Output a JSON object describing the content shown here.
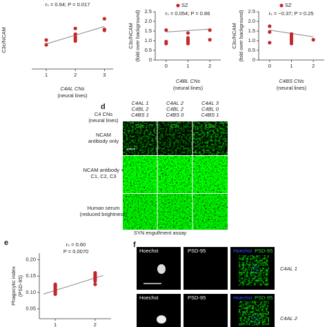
{
  "chart_data": [
    {
      "type": "scatter",
      "annotation": "rₛ = 0.64; P = 0.017",
      "ylabel": [
        "C3c/NCAM"
      ],
      "xlabel": [
        "C4AL CNs",
        "(neural lines)"
      ],
      "x": [
        1,
        1,
        2,
        2,
        2,
        2,
        2,
        2,
        3,
        3,
        3
      ],
      "values": [
        1.5,
        1.25,
        2.1,
        1.8,
        1.8,
        1.65,
        1.55,
        1.45,
        2.6,
        2.0,
        2.05
      ],
      "color": "#c0282d",
      "fit_line": {
        "x": [
          1,
          3
        ],
        "values": [
          1.3,
          2.2
        ],
        "color": "#888888"
      },
      "xlim": [
        0.5,
        3.3
      ],
      "xticks": [
        1,
        2,
        3
      ],
      "ylim": [
        0,
        3
      ]
    },
    {
      "type": "scatter",
      "annotation": "rₛ = 0.054; P = 0.86",
      "ylabel": [
        "C3c/NCAM",
        "(fold over background)"
      ],
      "xlabel": [
        "C4BL CNs",
        "(neural lines)"
      ],
      "series": [
        {
          "name": "SZ",
          "color": "#c0282d",
          "x": [
            0,
            0,
            0,
            1,
            1,
            1,
            1,
            1,
            2,
            2
          ],
          "values": [
            1.55,
            0.95,
            0.85,
            1.4,
            1.15,
            1.05,
            0.95,
            0.85,
            1.55,
            1.05
          ]
        }
      ],
      "fit_line": {
        "x": [
          0,
          2
        ],
        "values": [
          1.45,
          1.6
        ],
        "color": "#888888"
      },
      "xlim": [
        -0.5,
        2.5
      ],
      "xticks": [
        0,
        1,
        2
      ],
      "ylim": [
        0,
        2.5
      ],
      "yticks": [
        0,
        0.5,
        {
          "value": 1,
          "label": "1.0"
        },
        1.5,
        {
          "value": 2,
          "label": "2.0"
        },
        2.5
      ]
    },
    {
      "type": "scatter",
      "annotation": "rₛ = −0.37; P = 0.25",
      "ylabel": [
        "C3c/NCAM",
        "(fold over background)"
      ],
      "xlabel": [
        "C4BS CNs",
        "(neural lines)"
      ],
      "series": [
        {
          "name": "SZ",
          "color": "#c0282d",
          "x": [
            0,
            0,
            0,
            1,
            1,
            1,
            1,
            1,
            1,
            2
          ],
          "values": [
            1.75,
            1.45,
            0.9,
            1.35,
            1.15,
            1.05,
            0.95,
            0.85,
            1.25,
            1.05
          ]
        }
      ],
      "fit_line": {
        "x": [
          0,
          2
        ],
        "values": [
          1.55,
          1.2
        ],
        "color": "#888888"
      },
      "xlim": [
        -0.5,
        2.5
      ],
      "xticks": [
        0,
        1,
        2
      ],
      "ylim": [
        0,
        2.5
      ],
      "yticks": [
        0,
        0.5,
        {
          "value": 1,
          "label": "1.0"
        },
        1.5,
        {
          "value": 2,
          "label": "2.0"
        },
        2.5
      ]
    },
    {
      "type": "scatter",
      "panel": "e",
      "annotation": [
        "rₛ = 0.60",
        "P = 0.0070"
      ],
      "ylabel": [
        "Phagocytic index",
        "(PSD-95)"
      ],
      "x": [
        1,
        1,
        1,
        1,
        1,
        1,
        1,
        1,
        1,
        1,
        2,
        2,
        2,
        2,
        2,
        2,
        2,
        2
      ],
      "values": [
        0.12,
        0.125,
        0.115,
        0.11,
        0.105,
        0.1,
        0.1,
        0.095,
        0.12,
        0.11,
        0.16,
        0.155,
        0.15,
        0.145,
        0.14,
        0.135,
        0.15,
        0.125
      ],
      "color": "#c0282d",
      "fit_line": {
        "x": [
          0.7,
          2.2
        ],
        "values": [
          0.095,
          0.152
        ],
        "color": "#888888"
      },
      "xlim": [
        0.6,
        2.4
      ],
      "xticks": [
        1,
        2
      ],
      "ylim": [
        0.02,
        0.22
      ],
      "yticks": [
        0.05,
        {
          "value": 0.1,
          "label": "0.10"
        },
        0.15,
        {
          "value": 0.2,
          "label": "0.20"
        }
      ]
    }
  ],
  "panel_d": {
    "label": "d",
    "row_header": [
      "C4 CNs",
      "(neural lines)"
    ],
    "columns": [
      [
        "C4AL 1",
        "C4BL 2",
        "C4BS 1"
      ],
      [
        "C4AL 2",
        "C4BL 2",
        "C4BS 0"
      ],
      [
        "C4AL 3",
        "C4BL 0",
        "C4BS 1"
      ]
    ],
    "image_label": "C3c",
    "rows": [
      [
        "NCAM",
        "antibody only"
      ],
      [
        "NCAM antibody +",
        "C1, C2, C3"
      ],
      [
        "Human serum",
        "(reduced brightness)"
      ]
    ]
  },
  "panel_f": {
    "label": "f",
    "title": "SYN engulfment assay",
    "columns": [
      "Hoechst",
      "PSD-95"
    ],
    "merge": [
      "Hoechst",
      "PSD-95"
    ],
    "rows": [
      "C4AL 1",
      "C4AL 2"
    ]
  }
}
